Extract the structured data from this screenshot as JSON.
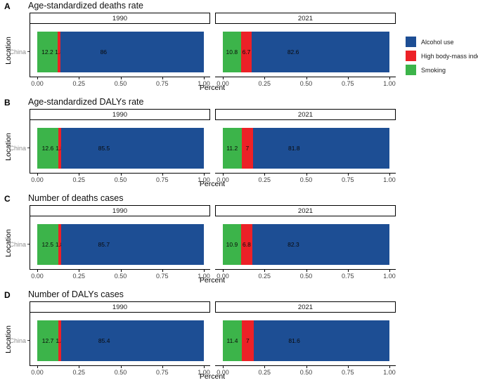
{
  "figure": {
    "y_axis_label": "Location",
    "x_axis_label": "Percent",
    "y_category": "China",
    "facet_labels": [
      "1990",
      "2021"
    ],
    "x_ticks": [
      "0.00",
      "0.25",
      "0.50",
      "0.75",
      "1.00"
    ],
    "series_colors": {
      "Alcohol use": "#1D4E94",
      "High body-mass index": "#EC2127",
      "Smoking": "#3CB44A"
    },
    "legend": {
      "position": "right",
      "items": [
        {
          "label": "Alcohol use",
          "color": "#1D4E94"
        },
        {
          "label": "High body-mass index",
          "color": "#EC2127"
        },
        {
          "label": "Smoking",
          "color": "#3CB44A"
        }
      ]
    }
  },
  "chart_data": [
    {
      "letter": "A",
      "title": "Age-standardized deaths rate",
      "type": "bar",
      "stacked": true,
      "orientation": "horizontal",
      "categories": [
        "China"
      ],
      "xlabel": "Percent",
      "ylabel": "Location",
      "xlim": [
        0,
        1
      ],
      "xticks": [
        "0.00",
        "0.25",
        "0.50",
        "0.75",
        "1.00"
      ],
      "facets": [
        {
          "name": "1990",
          "segments": [
            {
              "series": "Smoking",
              "value": 12.2,
              "label": "12.2"
            },
            {
              "series": "High body-mass index",
              "value": 1.8,
              "label": "1.8"
            },
            {
              "series": "Alcohol use",
              "value": 86,
              "label": "86"
            }
          ]
        },
        {
          "name": "2021",
          "segments": [
            {
              "series": "Smoking",
              "value": 10.8,
              "label": "10.8"
            },
            {
              "series": "High body-mass index",
              "value": 6.7,
              "label": "6.7"
            },
            {
              "series": "Alcohol use",
              "value": 82.6,
              "label": "82.6"
            }
          ]
        }
      ]
    },
    {
      "letter": "B",
      "title": "Age-standardized DALYs rate",
      "type": "bar",
      "stacked": true,
      "orientation": "horizontal",
      "categories": [
        "China"
      ],
      "xlabel": "Percent",
      "ylabel": "Location",
      "xlim": [
        0,
        1
      ],
      "xticks": [
        "0.00",
        "0.25",
        "0.50",
        "0.75",
        "1.00"
      ],
      "facets": [
        {
          "name": "1990",
          "segments": [
            {
              "series": "Smoking",
              "value": 12.6,
              "label": "12.6"
            },
            {
              "series": "High body-mass index",
              "value": 1.8,
              "label": "1.8"
            },
            {
              "series": "Alcohol use",
              "value": 85.5,
              "label": "85.5"
            }
          ]
        },
        {
          "name": "2021",
          "segments": [
            {
              "series": "Smoking",
              "value": 11.2,
              "label": "11.2"
            },
            {
              "series": "High body-mass index",
              "value": 7,
              "label": "7"
            },
            {
              "series": "Alcohol use",
              "value": 81.8,
              "label": "81.8"
            }
          ]
        }
      ]
    },
    {
      "letter": "C",
      "title": "Number of deaths cases",
      "type": "bar",
      "stacked": true,
      "orientation": "horizontal",
      "categories": [
        "China"
      ],
      "xlabel": "Percent",
      "ylabel": "Location",
      "xlim": [
        0,
        1
      ],
      "xticks": [
        "0.00",
        "0.25",
        "0.50",
        "0.75",
        "1.00"
      ],
      "facets": [
        {
          "name": "1990",
          "segments": [
            {
              "series": "Smoking",
              "value": 12.5,
              "label": "12.5"
            },
            {
              "series": "High body-mass index",
              "value": 1.8,
              "label": "1.8"
            },
            {
              "series": "Alcohol use",
              "value": 85.7,
              "label": "85.7"
            }
          ]
        },
        {
          "name": "2021",
          "segments": [
            {
              "series": "Smoking",
              "value": 10.9,
              "label": "10.9"
            },
            {
              "series": "High body-mass index",
              "value": 6.8,
              "label": "6.8"
            },
            {
              "series": "Alcohol use",
              "value": 82.3,
              "label": "82.3"
            }
          ]
        }
      ]
    },
    {
      "letter": "D",
      "title": "Number of DALYs cases",
      "type": "bar",
      "stacked": true,
      "orientation": "horizontal",
      "categories": [
        "China"
      ],
      "xlabel": "Percent",
      "ylabel": "Location",
      "xlim": [
        0,
        1
      ],
      "xticks": [
        "0.00",
        "0.25",
        "0.50",
        "0.75",
        "1.00"
      ],
      "facets": [
        {
          "name": "1990",
          "segments": [
            {
              "series": "Smoking",
              "value": 12.7,
              "label": "12.7"
            },
            {
              "series": "High body-mass index",
              "value": 1.8,
              "label": "1.8"
            },
            {
              "series": "Alcohol use",
              "value": 85.4,
              "label": "85.4"
            }
          ]
        },
        {
          "name": "2021",
          "segments": [
            {
              "series": "Smoking",
              "value": 11.4,
              "label": "11.4"
            },
            {
              "series": "High body-mass index",
              "value": 7,
              "label": "7"
            },
            {
              "series": "Alcohol use",
              "value": 81.6,
              "label": "81.6"
            }
          ]
        }
      ]
    }
  ]
}
